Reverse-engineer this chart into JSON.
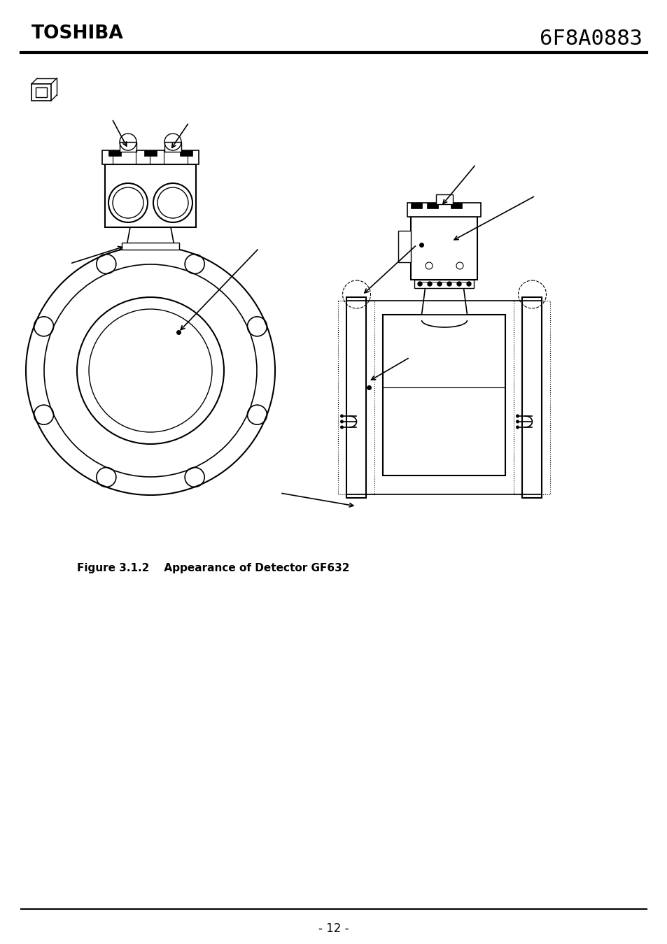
{
  "title_left": "TOSHIBA",
  "title_right": "6F8A0883",
  "page_number": "- 12 -",
  "figure_caption": "Figure 3.1.2    Appearance of Detector GF632",
  "bg_color": "#ffffff",
  "line_color": "#000000"
}
